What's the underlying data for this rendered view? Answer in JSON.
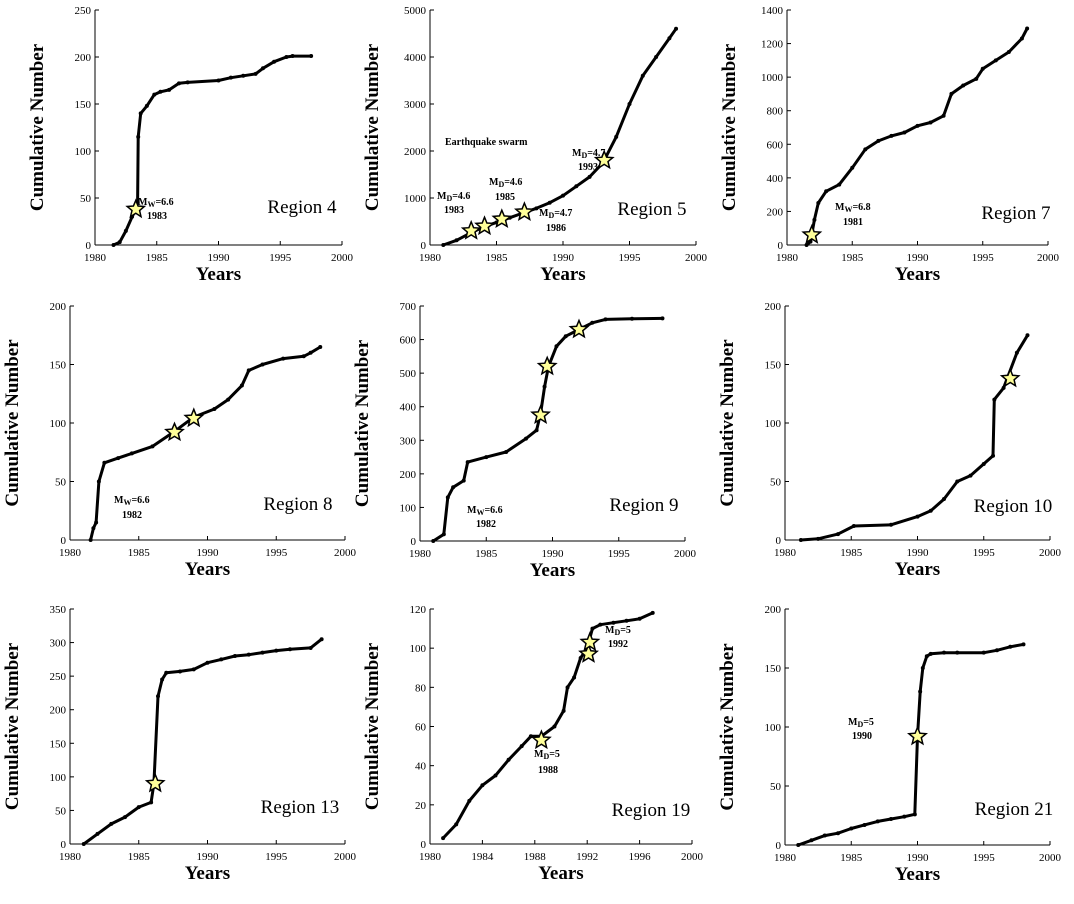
{
  "chart_data": [
    {
      "type": "line",
      "region_label": "Region 4",
      "xlabel": "Years",
      "ylabel": "Cumulative Number",
      "xlim": [
        1980,
        2000
      ],
      "ylim": [
        0,
        250
      ],
      "xticks": [
        1980,
        1985,
        1990,
        1995,
        2000
      ],
      "yticks": [
        0,
        50,
        100,
        150,
        200,
        250
      ],
      "x": [
        1981.5,
        1982,
        1982.5,
        1983,
        1983.3,
        1983.45,
        1983.5,
        1983.7,
        1984.2,
        1984.8,
        1985.3,
        1986,
        1986.8,
        1987.5,
        1990,
        1991,
        1992,
        1993,
        1993.6,
        1994.5,
        1995.5,
        1996,
        1997.5
      ],
      "y": [
        0,
        3,
        15,
        30,
        38,
        45,
        115,
        140,
        148,
        160,
        163,
        165,
        172,
        173,
        175,
        178,
        180,
        182,
        188,
        195,
        200,
        201,
        201
      ],
      "events": [
        {
          "x": 1983.3,
          "y": 38,
          "label_main": "MW=6.6",
          "label_year": "1983"
        }
      ],
      "annotations": []
    },
    {
      "type": "line",
      "region_label": "Region 5",
      "xlabel": "Years",
      "ylabel": "Cumulative Number",
      "xlim": [
        1980,
        2000
      ],
      "ylim": [
        0,
        5000
      ],
      "xticks": [
        1980,
        1985,
        1990,
        1995,
        2000
      ],
      "yticks": [
        0,
        1000,
        2000,
        3000,
        4000,
        5000
      ],
      "x": [
        1981,
        1982,
        1983,
        1984,
        1985,
        1986,
        1987,
        1988,
        1989,
        1990,
        1991,
        1992,
        1993,
        1994,
        1995,
        1996,
        1997,
        1998,
        1998.5
      ],
      "y": [
        0,
        100,
        250,
        380,
        480,
        580,
        680,
        780,
        900,
        1050,
        1250,
        1450,
        1750,
        2300,
        3000,
        3600,
        4000,
        4400,
        4600
      ],
      "events": [
        {
          "x": 1983.1,
          "y": 300,
          "label_main": "MD=4.6",
          "label_year": "1983"
        },
        {
          "x": 1984.1,
          "y": 400,
          "label_main": "",
          "label_year": ""
        },
        {
          "x": 1985.4,
          "y": 550,
          "label_main": "MD=4.6",
          "label_year": "1985"
        },
        {
          "x": 1987.1,
          "y": 700,
          "label_main": "MD=4.7",
          "label_year": "1986"
        },
        {
          "x": 1993.1,
          "y": 1800,
          "label_main": "MD=4.7",
          "label_year": "1993"
        }
      ],
      "annotations": [
        "Earthquake swarm"
      ]
    },
    {
      "type": "line",
      "region_label": "Region 7",
      "xlabel": "Years",
      "ylabel": "Cumulative Number",
      "xlim": [
        1980,
        2000
      ],
      "ylim": [
        0,
        1400
      ],
      "xticks": [
        1980,
        1985,
        1990,
        1995,
        2000
      ],
      "yticks": [
        0,
        200,
        400,
        600,
        800,
        1000,
        1200,
        1400
      ],
      "x": [
        1981.5,
        1981.8,
        1982.1,
        1982.4,
        1983,
        1984,
        1985,
        1986,
        1987,
        1988,
        1989,
        1990,
        1991,
        1992,
        1992.6,
        1993.5,
        1994.5,
        1995,
        1996,
        1997,
        1998,
        1998.4
      ],
      "y": [
        0,
        20,
        150,
        250,
        320,
        360,
        460,
        570,
        620,
        650,
        670,
        710,
        730,
        770,
        900,
        950,
        990,
        1050,
        1100,
        1150,
        1230,
        1290
      ],
      "events": [
        {
          "x": 1981.9,
          "y": 60,
          "label_main": "MW=6.8",
          "label_year": "1981"
        }
      ],
      "annotations": []
    },
    {
      "type": "line",
      "region_label": "Region 8",
      "xlabel": "Years",
      "ylabel": "Cumulative Number",
      "xlim": [
        1980,
        2000
      ],
      "ylim": [
        0,
        200
      ],
      "xticks": [
        1980,
        1985,
        1990,
        1995,
        2000
      ],
      "yticks": [
        0,
        50,
        100,
        150,
        200
      ],
      "x": [
        1981.5,
        1981.7,
        1981.9,
        1982.1,
        1982.5,
        1983.5,
        1984.5,
        1986,
        1987.5,
        1989,
        1990.5,
        1991.5,
        1992.5,
        1993,
        1994,
        1995.5,
        1997,
        1997.5,
        1998.2
      ],
      "y": [
        0,
        10,
        15,
        50,
        66,
        70,
        74,
        80,
        92,
        105,
        112,
        120,
        132,
        145,
        150,
        155,
        157,
        160,
        165
      ],
      "events": [
        {
          "x": 1987.6,
          "y": 92,
          "label_main": "MW=6.6",
          "label_year": "1982"
        },
        {
          "x": 1989,
          "y": 104,
          "label_main": "",
          "label_year": ""
        }
      ],
      "annotations": []
    },
    {
      "type": "line",
      "region_label": "Region 9",
      "xlabel": "Years",
      "ylabel": "Cumulative Number",
      "xlim": [
        1980,
        2000
      ],
      "ylim": [
        0,
        700
      ],
      "xticks": [
        1980,
        1985,
        1990,
        1995,
        2000
      ],
      "yticks": [
        0,
        100,
        200,
        300,
        400,
        500,
        600,
        700
      ],
      "x": [
        1981,
        1981.8,
        1982.1,
        1982.5,
        1983.3,
        1983.6,
        1985,
        1986.5,
        1988,
        1988.8,
        1989.1,
        1989.4,
        1989.7,
        1990.3,
        1991,
        1992,
        1993,
        1994,
        1996,
        1998.3
      ],
      "y": [
        0,
        20,
        130,
        160,
        180,
        235,
        250,
        265,
        305,
        330,
        380,
        460,
        520,
        580,
        610,
        630,
        650,
        660,
        662,
        663
      ],
      "events": [
        {
          "x": 1989.1,
          "y": 375,
          "label_main": "MW=6.6",
          "label_year": "1982"
        },
        {
          "x": 1989.6,
          "y": 520,
          "label_main": "",
          "label_year": ""
        },
        {
          "x": 1992,
          "y": 630,
          "label_main": "",
          "label_year": ""
        }
      ],
      "annotations": []
    },
    {
      "type": "line",
      "region_label": "Region 10",
      "xlabel": "Years",
      "ylabel": "Cumulative Number",
      "xlim": [
        1980,
        2000
      ],
      "ylim": [
        0,
        200
      ],
      "xticks": [
        1980,
        1985,
        1990,
        1995,
        2000
      ],
      "yticks": [
        0,
        50,
        100,
        150,
        200
      ],
      "x": [
        1981.2,
        1982.5,
        1984,
        1985.2,
        1988,
        1990,
        1991,
        1992,
        1993,
        1994,
        1995,
        1995.7,
        1995.8,
        1996.5,
        1997.5,
        1998.3
      ],
      "y": [
        0,
        1,
        5,
        12,
        13,
        20,
        25,
        35,
        50,
        55,
        65,
        72,
        120,
        130,
        160,
        175
      ],
      "events": [
        {
          "x": 1997,
          "y": 138,
          "label_main": "",
          "label_year": ""
        }
      ],
      "annotations": []
    },
    {
      "type": "line",
      "region_label": "Region 13",
      "xlabel": "Years",
      "ylabel": "Cumulative Number",
      "xlim": [
        1980,
        2000
      ],
      "ylim": [
        0,
        350
      ],
      "xticks": [
        1980,
        1985,
        1990,
        1995,
        2000
      ],
      "yticks": [
        0,
        50,
        100,
        150,
        200,
        250,
        300,
        350
      ],
      "x": [
        1981,
        1982,
        1983,
        1984,
        1985,
        1985.9,
        1986.1,
        1986.4,
        1986.7,
        1987,
        1988,
        1989,
        1990,
        1991,
        1992,
        1993,
        1994,
        1995,
        1996,
        1997.5,
        1998.3
      ],
      "y": [
        0,
        15,
        30,
        40,
        55,
        62,
        90,
        220,
        245,
        255,
        257,
        260,
        270,
        275,
        280,
        282,
        285,
        288,
        290,
        292,
        305
      ],
      "events": [
        {
          "x": 1986.2,
          "y": 90,
          "label_main": "",
          "label_year": ""
        }
      ],
      "annotations": []
    },
    {
      "type": "line",
      "region_label": "Region 19",
      "xlabel": "Years",
      "ylabel": "Cumulative Number",
      "xlim": [
        1980,
        2000
      ],
      "ylim": [
        0,
        120
      ],
      "xticks": [
        1980,
        1984,
        1988,
        1992,
        1996,
        2000
      ],
      "yticks": [
        0,
        20,
        40,
        60,
        80,
        100,
        120
      ],
      "x": [
        1981,
        1982,
        1983,
        1984,
        1985,
        1986,
        1987,
        1987.7,
        1988.5,
        1989.5,
        1990.2,
        1990.5,
        1991,
        1991.5,
        1992,
        1992.4,
        1993,
        1994,
        1995,
        1996,
        1997
      ],
      "y": [
        3,
        10,
        22,
        30,
        35,
        43,
        50,
        55,
        55,
        60,
        68,
        80,
        85,
        95,
        100,
        110,
        112,
        113,
        114,
        115,
        118
      ],
      "events": [
        {
          "x": 1988.5,
          "y": 53,
          "label_main": "MD=5",
          "label_year": "1988"
        },
        {
          "x": 1992.1,
          "y": 97,
          "label_main": "",
          "label_year": ""
        },
        {
          "x": 1992.2,
          "y": 103,
          "label_main": "MD=5",
          "label_year": "1992"
        }
      ],
      "annotations": []
    },
    {
      "type": "line",
      "region_label": "Region 21",
      "xlabel": "Years",
      "ylabel": "Cumulative Number",
      "xlim": [
        1980,
        2000
      ],
      "ylim": [
        0,
        200
      ],
      "xticks": [
        1980,
        1985,
        1990,
        1995,
        2000
      ],
      "yticks": [
        0,
        50,
        100,
        150,
        200
      ],
      "x": [
        1981,
        1982,
        1983,
        1984,
        1985,
        1986,
        1987,
        1988,
        1989,
        1989.8,
        1990,
        1990.2,
        1990.4,
        1990.7,
        1991,
        1992,
        1993,
        1995,
        1996,
        1997,
        1998
      ],
      "y": [
        0,
        4,
        8,
        10,
        14,
        17,
        20,
        22,
        24,
        26,
        92,
        130,
        150,
        160,
        162,
        163,
        163,
        163,
        165,
        168,
        170
      ],
      "events": [
        {
          "x": 1990,
          "y": 92,
          "label_main": "MD=5",
          "label_year": "1990"
        }
      ],
      "annotations": []
    }
  ]
}
